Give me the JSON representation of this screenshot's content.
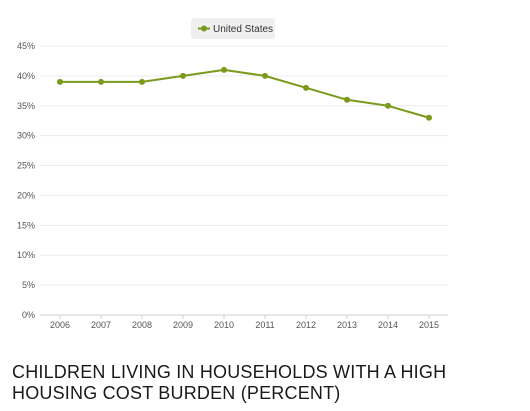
{
  "chart_data": {
    "type": "line",
    "title": "CHILDREN LIVING IN HOUSEHOLDS WITH A HIGH HOUSING COST BURDEN (PERCENT)",
    "xlabel": "",
    "ylabel": "",
    "x": [
      "2006",
      "2007",
      "2008",
      "2009",
      "2010",
      "2011",
      "2012",
      "2013",
      "2014",
      "2015"
    ],
    "series": [
      {
        "name": "United States",
        "values": [
          39,
          39,
          39,
          40,
          41,
          40,
          38,
          36,
          35,
          33
        ],
        "color": "#7a9a1c"
      }
    ],
    "ylim": [
      0,
      45
    ],
    "yticks": [
      "0%",
      "5%",
      "10%",
      "15%",
      "20%",
      "25%",
      "30%",
      "35%",
      "40%",
      "45%"
    ],
    "grid": true,
    "legend_position": "top-center"
  }
}
